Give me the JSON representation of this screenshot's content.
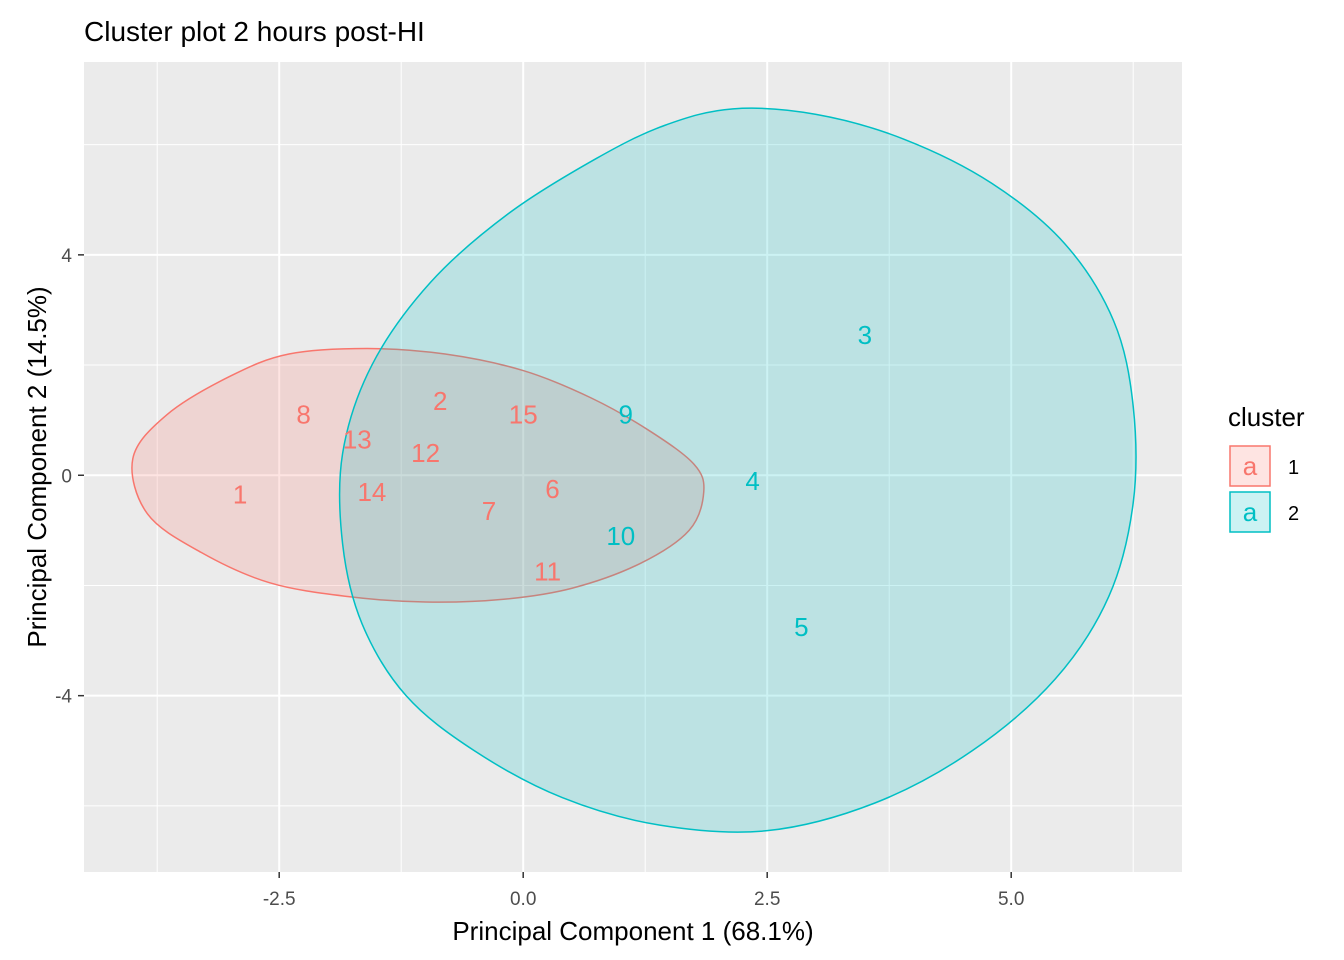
{
  "chart_data": {
    "type": "scatter",
    "title": "Cluster plot 2 hours post-HI",
    "xlabel": "Principal Component 1 (68.1%)",
    "ylabel": "Principal Component 2 (14.5%)",
    "xlim": [
      -4.5,
      6.75
    ],
    "ylim": [
      -7.2,
      7.5
    ],
    "x_ticks": [
      -2.5,
      0.0,
      2.5,
      5.0
    ],
    "x_tick_labels": [
      "-2.5",
      "0.0",
      "2.5",
      "5.0"
    ],
    "y_ticks": [
      -4,
      0,
      4
    ],
    "y_tick_labels": [
      "-4",
      "0",
      "4"
    ],
    "grid": true,
    "background": "#ebebeb",
    "legend": {
      "title": "cluster",
      "position": "right",
      "key_glyph": "a",
      "entries": [
        {
          "label": "1",
          "color": "#f8766d"
        },
        {
          "label": "2",
          "color": "#00bfc4"
        }
      ]
    },
    "series": [
      {
        "name": "1",
        "color": "#f8766d",
        "points": [
          {
            "label": "1",
            "x": -2.9,
            "y": -0.35
          },
          {
            "label": "8",
            "x": -2.25,
            "y": 1.1
          },
          {
            "label": "13",
            "x": -1.7,
            "y": 0.65
          },
          {
            "label": "2",
            "x": -0.85,
            "y": 1.35
          },
          {
            "label": "12",
            "x": -1.0,
            "y": 0.4
          },
          {
            "label": "15",
            "x": 0.0,
            "y": 1.1
          },
          {
            "label": "14",
            "x": -1.55,
            "y": -0.3
          },
          {
            "label": "6",
            "x": 0.3,
            "y": -0.25
          },
          {
            "label": "7",
            "x": -0.35,
            "y": -0.65
          },
          {
            "label": "11",
            "x": 0.25,
            "y": -1.75
          }
        ]
      },
      {
        "name": "2",
        "color": "#00bfc4",
        "points": [
          {
            "label": "9",
            "x": 1.05,
            "y": 1.1
          },
          {
            "label": "3",
            "x": 3.5,
            "y": 2.55
          },
          {
            "label": "4",
            "x": 2.35,
            "y": -0.1
          },
          {
            "label": "10",
            "x": 1.0,
            "y": -1.1
          },
          {
            "label": "5",
            "x": 2.85,
            "y": -2.75
          }
        ]
      }
    ],
    "ellipses": [
      {
        "cluster": "1",
        "color": "#f8766d",
        "fill_opacity": 0.2,
        "polygon": [
          [
            -3.0,
            1.8
          ],
          [
            -2.4,
            2.2
          ],
          [
            -1.6,
            2.3
          ],
          [
            -0.8,
            2.2
          ],
          [
            0.0,
            1.9
          ],
          [
            0.7,
            1.4
          ],
          [
            1.3,
            0.8
          ],
          [
            1.75,
            0.2
          ],
          [
            1.85,
            -0.3
          ],
          [
            1.7,
            -1.0
          ],
          [
            1.2,
            -1.6
          ],
          [
            0.5,
            -2.05
          ],
          [
            -0.2,
            -2.25
          ],
          [
            -1.0,
            -2.3
          ],
          [
            -1.8,
            -2.2
          ],
          [
            -2.6,
            -1.95
          ],
          [
            -3.3,
            -1.4
          ],
          [
            -3.85,
            -0.7
          ],
          [
            -4.0,
            0.3
          ],
          [
            -3.65,
            1.1
          ]
        ]
      },
      {
        "cluster": "2",
        "color": "#00bfc4",
        "fill_opacity": 0.2,
        "polygon": [
          [
            2.15,
            6.65
          ],
          [
            3.0,
            6.55
          ],
          [
            3.9,
            6.1
          ],
          [
            4.8,
            5.3
          ],
          [
            5.55,
            4.2
          ],
          [
            6.05,
            2.8
          ],
          [
            6.25,
            1.25
          ],
          [
            6.25,
            -0.5
          ],
          [
            6.0,
            -2.2
          ],
          [
            5.45,
            -3.7
          ],
          [
            4.6,
            -5.0
          ],
          [
            3.6,
            -5.95
          ],
          [
            2.5,
            -6.45
          ],
          [
            1.4,
            -6.35
          ],
          [
            0.4,
            -5.85
          ],
          [
            -0.5,
            -5.0
          ],
          [
            -1.2,
            -4.0
          ],
          [
            -1.65,
            -2.7
          ],
          [
            -1.85,
            -1.25
          ],
          [
            -1.85,
            0.4
          ],
          [
            -1.55,
            2.0
          ],
          [
            -0.95,
            3.5
          ],
          [
            -0.15,
            4.75
          ],
          [
            0.75,
            5.75
          ],
          [
            1.45,
            6.35
          ]
        ]
      }
    ]
  }
}
